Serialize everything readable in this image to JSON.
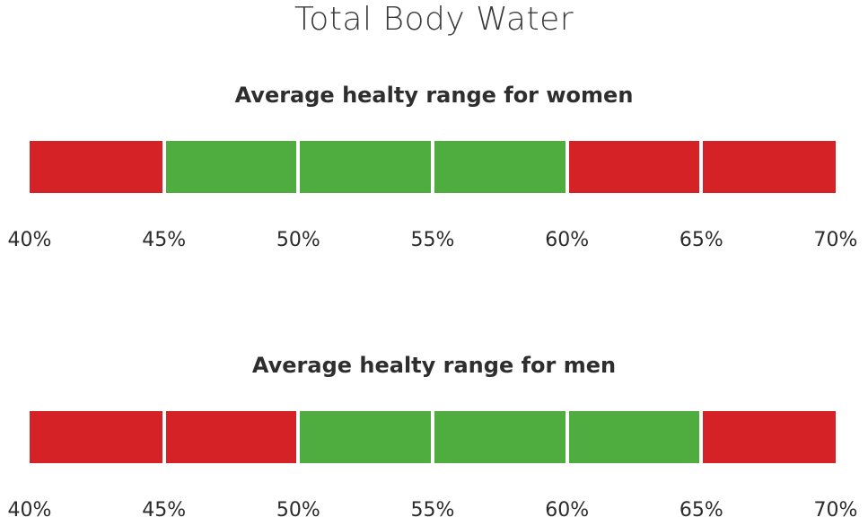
{
  "chart_data": {
    "type": "bar",
    "title": "Total Body Water",
    "colors": {
      "healthy": "#4fac3f",
      "unhealthy": "#d42226"
    },
    "panels": [
      {
        "name": "women",
        "title": "Average healty range for women",
        "tick_labels": [
          "40%",
          "45%",
          "50%",
          "55%",
          "60%",
          "65%",
          "70%"
        ],
        "segments": [
          {
            "from": 40,
            "to": 45,
            "status": "unhealthy"
          },
          {
            "from": 45,
            "to": 50,
            "status": "healthy"
          },
          {
            "from": 50,
            "to": 55,
            "status": "healthy"
          },
          {
            "from": 55,
            "to": 60,
            "status": "healthy"
          },
          {
            "from": 60,
            "to": 65,
            "status": "unhealthy"
          },
          {
            "from": 65,
            "to": 70,
            "status": "unhealthy"
          }
        ],
        "healthy_range": [
          45,
          60
        ]
      },
      {
        "name": "men",
        "title": "Average healty range for men",
        "tick_labels": [
          "40%",
          "45%",
          "50%",
          "55%",
          "60%",
          "65%",
          "70%"
        ],
        "segments": [
          {
            "from": 40,
            "to": 45,
            "status": "unhealthy"
          },
          {
            "from": 45,
            "to": 50,
            "status": "unhealthy"
          },
          {
            "from": 50,
            "to": 55,
            "status": "healthy"
          },
          {
            "from": 55,
            "to": 60,
            "status": "healthy"
          },
          {
            "from": 60,
            "to": 65,
            "status": "healthy"
          },
          {
            "from": 65,
            "to": 70,
            "status": "unhealthy"
          }
        ],
        "healthy_range": [
          50,
          65
        ]
      }
    ],
    "xlim": [
      40,
      70
    ]
  }
}
